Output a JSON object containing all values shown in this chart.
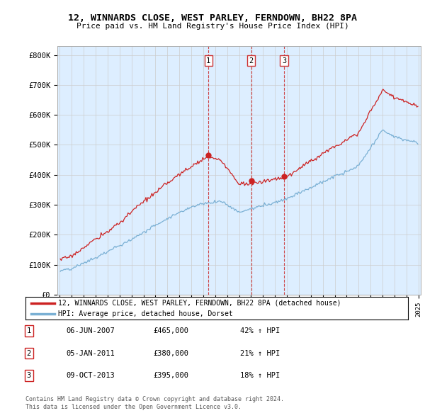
{
  "title": "12, WINNARDS CLOSE, WEST PARLEY, FERNDOWN, BH22 8PA",
  "subtitle": "Price paid vs. HM Land Registry's House Price Index (HPI)",
  "hpi_color": "#7ab0d4",
  "price_color": "#cc2222",
  "vline_color": "#cc3333",
  "fill_color": "#ddeeff",
  "background_color": "#ffffff",
  "grid_color": "#cccccc",
  "ylim": [
    0,
    830000
  ],
  "yticks": [
    0,
    100000,
    200000,
    300000,
    400000,
    500000,
    600000,
    700000,
    800000
  ],
  "ytick_labels": [
    "£0",
    "£100K",
    "£200K",
    "£300K",
    "£400K",
    "£500K",
    "£600K",
    "£700K",
    "£800K"
  ],
  "trans_times": [
    2007.44,
    2011.01,
    2013.77
  ],
  "trans_prices": [
    465000,
    380000,
    395000
  ],
  "trans_labels": [
    "1",
    "2",
    "3"
  ],
  "legend_entries": [
    "12, WINNARDS CLOSE, WEST PARLEY, FERNDOWN, BH22 8PA (detached house)",
    "HPI: Average price, detached house, Dorset"
  ],
  "table_data": [
    [
      "1",
      "06-JUN-2007",
      "£465,000",
      "42% ↑ HPI"
    ],
    [
      "2",
      "05-JAN-2011",
      "£380,000",
      "21% ↑ HPI"
    ],
    [
      "3",
      "09-OCT-2013",
      "£395,000",
      "18% ↑ HPI"
    ]
  ],
  "footer_lines": [
    "Contains HM Land Registry data © Crown copyright and database right 2024.",
    "This data is licensed under the Open Government Licence v3.0."
  ],
  "x_start_year": 1995,
  "x_end_year": 2025
}
